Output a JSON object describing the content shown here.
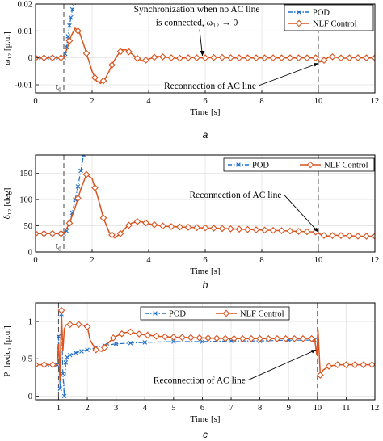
{
  "colors": {
    "pod": "#1f6fc9",
    "nlf": "#d9531e",
    "axis": "#000000",
    "grid": "#e3e3e3",
    "marker_line": "#555555"
  },
  "chart_data": [
    {
      "type": "line",
      "panel_label": "a",
      "xlabel": "Time [s]",
      "ylabel": "ω₁₂ [p.u.]",
      "xlim": [
        0,
        12
      ],
      "ylim": [
        -0.013,
        0.02
      ],
      "xticks": [
        0,
        2,
        4,
        6,
        8,
        10,
        12
      ],
      "yticks": [
        -0.01,
        0,
        0.01,
        0.02
      ],
      "ytick_labels": [
        "-0.01",
        "0",
        "0.01",
        "0.02"
      ],
      "grid": true,
      "legend_position": "top-right",
      "vlines": [
        {
          "x": 1.0,
          "label": "t₀"
        },
        {
          "x": 10.0,
          "label": ""
        }
      ],
      "annotations": [
        {
          "text": "Synchronization when no AC line",
          "x": 5.7,
          "y": 0.017
        },
        {
          "text": "is connected, ω₁₂ → 0",
          "x": 5.7,
          "y": 0.012
        },
        {
          "text": "Reconnection of AC line",
          "x": 7.8,
          "y": -0.0115,
          "arrow_to": [
            10.0,
            -0.002
          ]
        }
      ],
      "series": [
        {
          "name": "POD",
          "style": "dashdot-x",
          "x": [
            0,
            0.2,
            0.4,
            0.6,
            0.8,
            1.0,
            1.05,
            1.1,
            1.15,
            1.2,
            1.25,
            1.3,
            1.35
          ],
          "y": [
            0,
            0,
            0,
            0,
            0,
            0,
            0.0015,
            0.004,
            0.008,
            0.012,
            0.015,
            0.018,
            0.0205
          ]
        },
        {
          "name": "NLF Control",
          "style": "solid-diamond",
          "x": [
            0,
            0.3,
            0.6,
            0.9,
            1.0,
            1.1,
            1.25,
            1.4,
            1.55,
            1.7,
            1.85,
            2.0,
            2.15,
            2.3,
            2.45,
            2.6,
            2.75,
            2.9,
            3.05,
            3.2,
            3.4,
            3.6,
            3.8,
            4.0,
            4.3,
            4.6,
            5.0,
            5.5,
            6.0,
            6.5,
            7.0,
            7.5,
            8.0,
            8.5,
            9.0,
            9.5,
            9.95,
            10.05,
            10.2,
            10.4,
            10.6,
            10.9,
            11.2,
            11.6,
            12.0
          ],
          "y": [
            0,
            0,
            0,
            0,
            0,
            0.003,
            0.008,
            0.011,
            0.0095,
            0.005,
            0.0,
            -0.005,
            -0.0085,
            -0.0095,
            -0.008,
            -0.005,
            -0.0015,
            0.001,
            0.003,
            0.003,
            0.0015,
            -0.0002,
            -0.0012,
            -0.0005,
            0.0006,
            0.0003,
            -0.0002,
            0.0001,
            0.0,
            0.0002,
            0.0,
            0.0,
            0.0,
            0.0,
            0.0,
            0.0,
            0.0,
            -0.0015,
            -0.0009,
            0.0005,
            0.0003,
            -0.0002,
            0.0001,
            0.0,
            0.0
          ],
          "markers_every": 0.3
        }
      ]
    },
    {
      "type": "line",
      "panel_label": "b",
      "xlabel": "Time [s]",
      "ylabel": "δ₁₂ [deg]",
      "xlim": [
        0,
        12
      ],
      "ylim": [
        0,
        185
      ],
      "xticks": [
        0,
        2,
        4,
        6,
        8,
        10,
        12
      ],
      "yticks": [
        0,
        50,
        100,
        150
      ],
      "ytick_labels": [
        "0",
        "50",
        "100",
        "150"
      ],
      "grid": true,
      "legend_position": "top-right",
      "vlines": [
        {
          "x": 1.0,
          "label": "t₀"
        },
        {
          "x": 10.0,
          "label": ""
        }
      ],
      "annotations": [
        {
          "text": "Reconnection of AC line",
          "x": 8.7,
          "y": 103,
          "arrow_to": [
            10.0,
            38
          ]
        }
      ],
      "series": [
        {
          "name": "POD",
          "style": "dashdot-x",
          "x": [
            0,
            0.3,
            0.6,
            0.9,
            1.0,
            1.1,
            1.2,
            1.3,
            1.4,
            1.5,
            1.6,
            1.7
          ],
          "y": [
            35,
            35,
            35,
            35,
            35,
            40,
            55,
            75,
            100,
            125,
            155,
            185
          ]
        },
        {
          "name": "NLF Control",
          "style": "solid-diamond",
          "x": [
            0,
            0.3,
            0.6,
            0.9,
            1.0,
            1.2,
            1.4,
            1.6,
            1.8,
            2.0,
            2.2,
            2.4,
            2.6,
            2.8,
            3.0,
            3.2,
            3.4,
            3.6,
            3.8,
            4.0,
            4.3,
            4.6,
            5.0,
            5.5,
            6.0,
            6.5,
            7.0,
            7.5,
            8.0,
            8.5,
            9.0,
            9.5,
            9.95,
            10.05,
            10.3,
            10.6,
            11.0,
            11.5,
            12.0
          ],
          "y": [
            35,
            35,
            35,
            35,
            35,
            55,
            85,
            120,
            148,
            140,
            105,
            65,
            38,
            27,
            35,
            47,
            55,
            58,
            57,
            54,
            51,
            49,
            48,
            47,
            46,
            45,
            44,
            43,
            42,
            41,
            40,
            39,
            38,
            34,
            30,
            32,
            31,
            30,
            30
          ],
          "markers_every": 0.3
        }
      ]
    },
    {
      "type": "line",
      "panel_label": "c",
      "xlabel": "Time [s]",
      "ylabel": "P_hvdc₁ [p.u.]",
      "xlim": [
        0.2,
        12
      ],
      "ylim": [
        -0.05,
        1.25
      ],
      "xticks": [
        1,
        2,
        3,
        4,
        5,
        6,
        7,
        8,
        9,
        10,
        11,
        12
      ],
      "yticks": [
        0,
        0.5,
        1
      ],
      "ytick_labels": [
        "0",
        "0.5",
        "1"
      ],
      "grid": true,
      "legend_position": "top-left",
      "vlines": [
        {
          "x": 1.0,
          "label": ""
        },
        {
          "x": 10.0,
          "label": ""
        }
      ],
      "annotations": [
        {
          "text": "Reconnection of AC line",
          "x": 7.5,
          "y": 0.17,
          "arrow_to": [
            9.95,
            0.62
          ]
        }
      ],
      "series": [
        {
          "name": "POD",
          "style": "dashdot-x",
          "x": [
            0.2,
            0.6,
            0.95,
            1.0,
            1.05,
            1.1,
            1.15,
            1.2,
            1.25,
            1.3,
            1.4,
            1.6,
            1.8,
            2.0,
            2.3,
            2.6,
            3.0,
            3.5,
            4.0,
            5.0,
            6.0,
            7.0,
            8.0,
            9.0,
            9.9
          ],
          "y": [
            0.42,
            0.42,
            0.42,
            0.8,
            0.1,
            1.1,
            0.3,
            0.0,
            0.45,
            0.52,
            0.55,
            0.58,
            0.6,
            0.62,
            0.65,
            0.68,
            0.7,
            0.71,
            0.72,
            0.73,
            0.73,
            0.74,
            0.74,
            0.75,
            0.75
          ]
        },
        {
          "name": "NLF Control",
          "style": "solid-diamond",
          "x": [
            0.2,
            0.5,
            0.8,
            0.95,
            1.0,
            1.05,
            1.1,
            1.15,
            1.2,
            1.25,
            1.3,
            1.4,
            1.6,
            1.8,
            2.0,
            2.1,
            2.3,
            2.5,
            2.7,
            2.9,
            3.1,
            3.3,
            3.5,
            3.7,
            4.0,
            4.5,
            5.0,
            6.0,
            7.0,
            8.0,
            9.0,
            9.9,
            9.98,
            10.02,
            10.1,
            10.2,
            10.4,
            10.7,
            11.0,
            11.5,
            12.0
          ],
          "y": [
            0.42,
            0.42,
            0.42,
            0.42,
            0.7,
            0.2,
            1.15,
            0.6,
            0.9,
            0.95,
            0.96,
            0.96,
            0.96,
            0.96,
            0.93,
            0.75,
            0.62,
            0.6,
            0.7,
            0.78,
            0.82,
            0.85,
            0.86,
            0.84,
            0.82,
            0.8,
            0.79,
            0.78,
            0.77,
            0.77,
            0.77,
            0.77,
            0.55,
            0.9,
            0.28,
            0.35,
            0.4,
            0.42,
            0.42,
            0.42,
            0.42
          ],
          "markers_every": 0.3
        }
      ]
    }
  ]
}
